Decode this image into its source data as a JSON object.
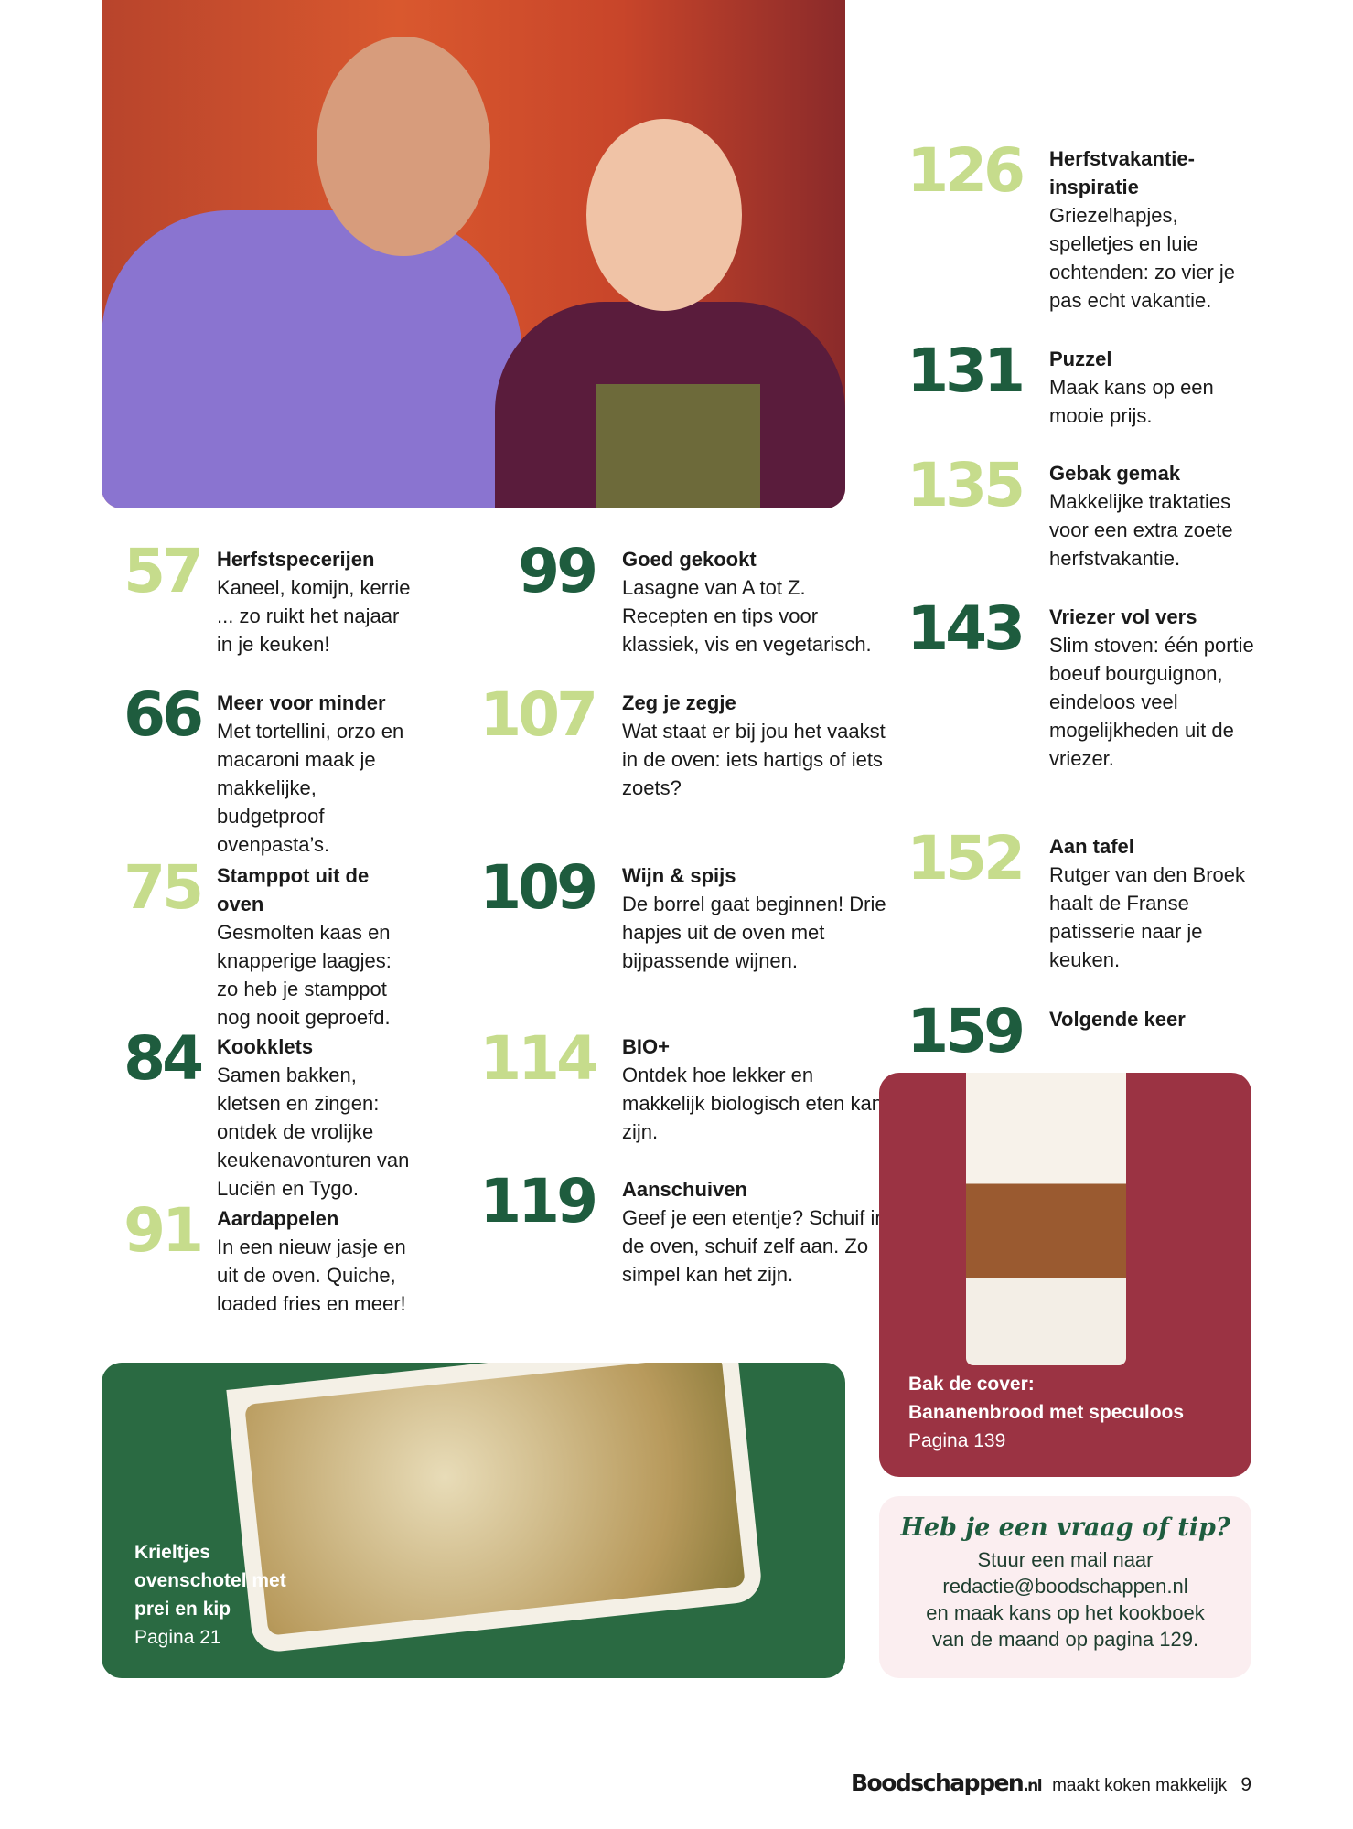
{
  "colors": {
    "light_green": "#c6dc8c",
    "dark_green": "#1e5c3e",
    "cover_red": "#9b3343",
    "tip_bg": "#fbeef0"
  },
  "entries": [
    {
      "page": "57",
      "title": "Herfstspecerijen",
      "text": "Kaneel, komijn, kerrie ... zo ruikt het najaar in je keuken!",
      "tone": "light"
    },
    {
      "page": "66",
      "title": "Meer voor minder",
      "text": "Met tortellini, orzo en macaroni maak je makkelijke, budgetproof ovenpasta’s.",
      "tone": "dark"
    },
    {
      "page": "75",
      "title": "Stamppot uit de oven",
      "text": "Gesmolten kaas en knapperige laagjes: zo heb je stamppot nog nooit geproefd.",
      "tone": "light"
    },
    {
      "page": "84",
      "title": "Kookklets",
      "text": "Samen bakken, kletsen en zingen: ontdek de vrolijke keukenavonturen van Luciën en Tygo.",
      "tone": "dark"
    },
    {
      "page": "91",
      "title": "Aardappelen",
      "text": "In een nieuw jasje en uit de oven. Quiche, loaded fries en meer!",
      "tone": "light"
    },
    {
      "page": "99",
      "title": "Goed gekookt",
      "text": "Lasagne van A tot Z. Recepten en tips voor klassiek, vis en vegetarisch.",
      "tone": "dark"
    },
    {
      "page": "107",
      "title": "Zeg je zegje",
      "text": "Wat staat er bij jou het vaakst in de oven: iets hartigs of iets zoets?",
      "tone": "light"
    },
    {
      "page": "109",
      "title": "Wijn & spijs",
      "text": "De borrel gaat beginnen! Drie hapjes uit de oven met bijpassende wijnen.",
      "tone": "dark"
    },
    {
      "page": "114",
      "title": "BIO+",
      "text": "Ontdek hoe lekker en makkelijk biologisch eten kan zijn.",
      "tone": "light"
    },
    {
      "page": "119",
      "title": "Aanschuiven",
      "text": "Geef je een etentje? Schuif in de oven, schuif zelf aan. Zo simpel kan het zijn.",
      "tone": "dark"
    },
    {
      "page": "126",
      "title": "Herfstvakantie-inspiratie",
      "text": "Griezelhapjes, spelletjes en luie ochtenden: zo vier je pas echt vakantie.",
      "tone": "light"
    },
    {
      "page": "131",
      "title": "Puzzel",
      "text": "Maak kans op een mooie prijs.",
      "tone": "dark"
    },
    {
      "page": "135",
      "title": "Gebak gemak",
      "text": "Makkelijke traktaties voor een extra zoete herfstvakantie.",
      "tone": "light"
    },
    {
      "page": "143",
      "title": "Vriezer vol vers",
      "text": "Slim stoven: één portie boeuf bourguignon, eindeloos veel mogelijkheden uit de vriezer.",
      "tone": "dark"
    },
    {
      "page": "152",
      "title": "Aan tafel",
      "text": "Rutger van den Broek haalt de Franse patisserie naar je keuken.",
      "tone": "light"
    },
    {
      "page": "159",
      "title": "Volgende keer",
      "text": "",
      "tone": "dark"
    }
  ],
  "bottom_photo": {
    "title": "Krieltjes ovenschotel met prei en kip",
    "page": "Pagina 21"
  },
  "cover": {
    "title": "Bak de cover:",
    "subtitle": "Bananenbrood met speculoos",
    "page": "Pagina 139"
  },
  "tip": {
    "heading": "Heb je een vraag of tip?",
    "line1": "Stuur een mail naar",
    "email": "redactie@boodschappen.nl",
    "line2": "en maak kans op het kookboek",
    "line3": "van de maand op pagina 129."
  },
  "footer": {
    "logo": "Boodschappen",
    "logo_suffix": ".nl",
    "tagline": "maakt koken makkelijk",
    "page_number": "9"
  }
}
